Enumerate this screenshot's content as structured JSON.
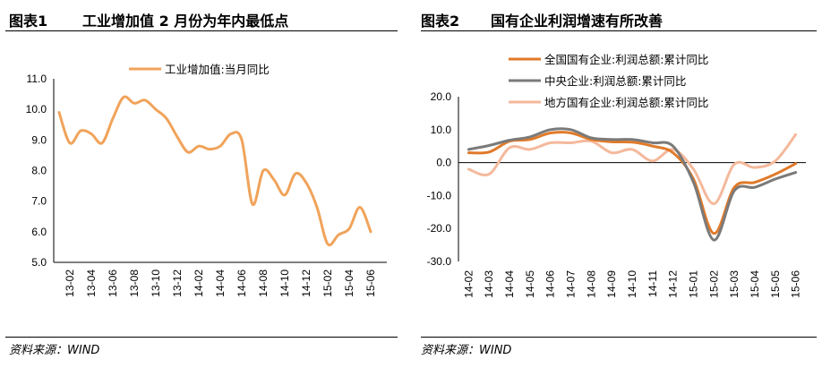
{
  "charts": [
    {
      "fig_no": "图表1",
      "title": "工业增加值 2 月份为年内最低点",
      "source": "资料来源：WIND"
    },
    {
      "fig_no": "图表2",
      "title": "国有企业利润增速有所改善",
      "source": "资料来源：WIND"
    }
  ],
  "chart_data": [
    {
      "type": "line",
      "title": "工业增加值 2 月份为年内最低点",
      "ylim": [
        5.0,
        11.0
      ],
      "yticks": [
        "11.0",
        "10.0",
        "9.0",
        "8.0",
        "7.0",
        "6.0",
        "5.0"
      ],
      "ytick_values": [
        11,
        10,
        9,
        8,
        7,
        6,
        5
      ],
      "tick_labels": [
        "13-02",
        "13-04",
        "13-06",
        "13-08",
        "13-10",
        "13-12",
        "14-02",
        "14-04",
        "14-06",
        "14-08",
        "14-10",
        "14-12",
        "15-02",
        "15-04",
        "15-06"
      ],
      "x": [
        "13-01",
        "13-02",
        "13-03",
        "13-04",
        "13-05",
        "13-06",
        "13-07",
        "13-08",
        "13-09",
        "13-10",
        "13-11",
        "13-12",
        "14-01",
        "14-02",
        "14-03",
        "14-04",
        "14-05",
        "14-06",
        "14-07",
        "14-08",
        "14-09",
        "14-10",
        "14-11",
        "14-12",
        "15-01",
        "15-02",
        "15-03",
        "15-04",
        "15-05",
        "15-06",
        "15-07"
      ],
      "series": [
        {
          "name": "工业增加值:当月同比",
          "color": "#f0a35a",
          "values": [
            9.9,
            8.9,
            9.3,
            9.2,
            8.9,
            9.7,
            10.4,
            10.2,
            10.3,
            10.0,
            9.7,
            9.1,
            8.6,
            8.8,
            8.7,
            8.8,
            9.2,
            9.0,
            6.9,
            8.0,
            7.7,
            7.2,
            7.9,
            7.6,
            6.8,
            5.6,
            5.9,
            6.1,
            6.8,
            6.0,
            null
          ]
        }
      ]
    },
    {
      "type": "line",
      "title": "国有企业利润增速有所改善",
      "ylim": [
        -30.0,
        20.0
      ],
      "yticks": [
        "20.0",
        "10.0",
        "0.0",
        "-10.0",
        "-20.0",
        "-30.0"
      ],
      "ytick_values": [
        20,
        10,
        0,
        -10,
        -20,
        -30
      ],
      "tick_labels": [
        "14-02",
        "14-03",
        "14-04",
        "14-05",
        "14-06",
        "14-07",
        "14-08",
        "14-09",
        "14-10",
        "14-11",
        "14-12",
        "15-01",
        "15-02",
        "15-03",
        "15-04",
        "15-05",
        "15-06"
      ],
      "x": [
        "14-02",
        "14-03",
        "14-04",
        "14-05",
        "14-06",
        "14-07",
        "14-08",
        "14-09",
        "14-10",
        "14-11",
        "14-12",
        "15-01",
        "15-02",
        "15-03",
        "15-04",
        "15-05",
        "15-06"
      ],
      "series": [
        {
          "name": "全国国有企业:利润总额:累计同比",
          "color": "#e07a2a",
          "values": [
            3.0,
            3.2,
            6.5,
            7.0,
            9.0,
            9.0,
            7.0,
            6.3,
            6.2,
            5.0,
            3.0,
            -5.0,
            -21.5,
            -7.5,
            -6.0,
            -3.5,
            -0.3
          ]
        },
        {
          "name": "中央企业:利润总额:累计同比",
          "color": "#7a7a7a",
          "values": [
            4.0,
            5.2,
            6.8,
            7.8,
            10.0,
            10.0,
            7.5,
            7.0,
            7.0,
            6.0,
            5.0,
            -6.0,
            -23.5,
            -8.5,
            -7.5,
            -5.0,
            -3.0
          ]
        },
        {
          "name": "地方国有企业:利润总额:累计同比",
          "color": "#f4b99c",
          "values": [
            -2.0,
            -3.5,
            4.5,
            4.0,
            6.0,
            6.0,
            6.5,
            3.0,
            4.0,
            0.5,
            4.0,
            -2.0,
            -12.5,
            -0.5,
            -1.5,
            0.5,
            8.5
          ]
        }
      ]
    }
  ]
}
